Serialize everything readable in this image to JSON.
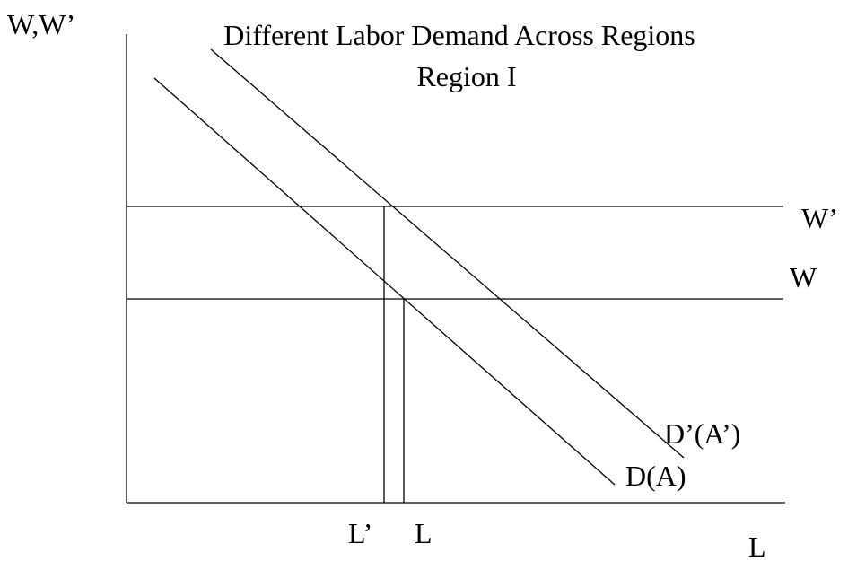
{
  "title": "Different Labor Demand Across Regions",
  "subtitle": "Region I",
  "y_axis_label": "W,W’",
  "x_axis_label": "L",
  "wage_labels": [
    "W’",
    "W"
  ],
  "curve_labels": [
    "D’(A’)",
    "D(A)"
  ],
  "employment_labels": [
    "L’",
    "L"
  ]
}
